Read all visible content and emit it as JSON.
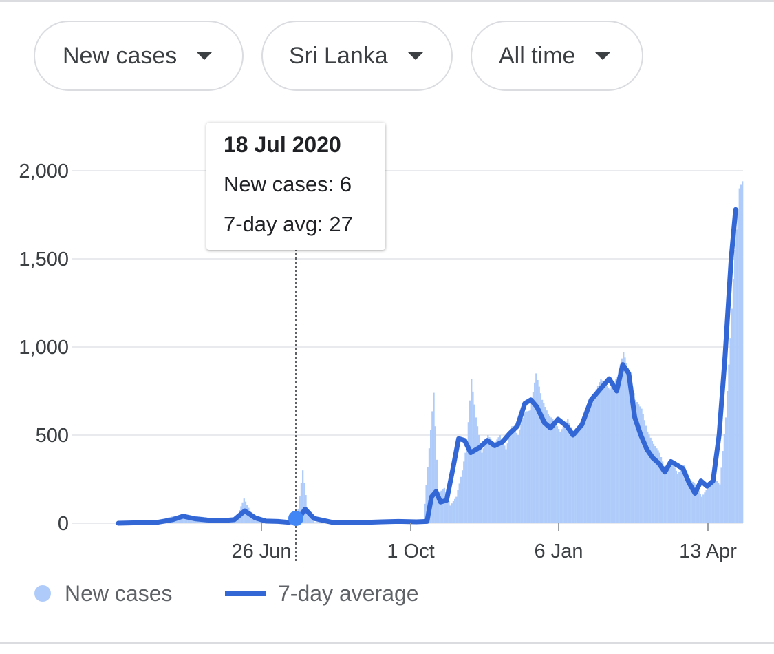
{
  "filters": {
    "metric": "New cases",
    "country": "Sri Lanka",
    "range": "All time"
  },
  "tooltip": {
    "date": "18 Jul 2020",
    "new_cases": "New cases: 6",
    "avg": "7-day avg: 27"
  },
  "legend": {
    "new_cases": "New cases",
    "avg": "7-day average"
  },
  "colors": {
    "bars": "#aecbfa",
    "line": "#3367d6",
    "grid": "#e8eaed",
    "marker": "#4285f4"
  },
  "chart_data": {
    "type": "bar",
    "x_ticks": [
      "26 Jun",
      "1 Oct",
      "6 Jan",
      "13 Apr"
    ],
    "y_ticks": [
      "0",
      "500",
      "1,000",
      "1,500",
      "2,000"
    ],
    "ylim": [
      0,
      2000
    ],
    "grid": true,
    "legend_position": "bottom-left",
    "series": [
      {
        "name": "New cases",
        "type": "bar",
        "points": [
          [
            "2020-03-10",
            0
          ],
          [
            "2020-03-25",
            10
          ],
          [
            "2020-04-05",
            15
          ],
          [
            "2020-04-15",
            40
          ],
          [
            "2020-04-25",
            45
          ],
          [
            "2020-05-05",
            35
          ],
          [
            "2020-05-15",
            20
          ],
          [
            "2020-05-22",
            20
          ],
          [
            "2020-05-27",
            30
          ],
          [
            "2020-06-01",
            140
          ],
          [
            "2020-06-05",
            70
          ],
          [
            "2020-06-10",
            30
          ],
          [
            "2020-06-15",
            20
          ],
          [
            "2020-06-22",
            15
          ],
          [
            "2020-06-30",
            10
          ],
          [
            "2020-07-06",
            10
          ],
          [
            "2020-07-10",
            300
          ],
          [
            "2020-07-13",
            90
          ],
          [
            "2020-07-18",
            6
          ],
          [
            "2020-07-25",
            10
          ],
          [
            "2020-08-05",
            5
          ],
          [
            "2020-08-20",
            5
          ],
          [
            "2020-09-01",
            5
          ],
          [
            "2020-09-15",
            5
          ],
          [
            "2020-09-28",
            5
          ],
          [
            "2020-10-05",
            740
          ],
          [
            "2020-10-08",
            170
          ],
          [
            "2020-10-12",
            200
          ],
          [
            "2020-10-16",
            100
          ],
          [
            "2020-10-20",
            150
          ],
          [
            "2020-10-24",
            300
          ],
          [
            "2020-10-27",
            450
          ],
          [
            "2020-10-30",
            820
          ],
          [
            "2020-11-02",
            600
          ],
          [
            "2020-11-06",
            400
          ],
          [
            "2020-11-10",
            500
          ],
          [
            "2020-11-14",
            450
          ],
          [
            "2020-11-18",
            500
          ],
          [
            "2020-11-22",
            420
          ],
          [
            "2020-11-26",
            550
          ],
          [
            "2020-11-30",
            500
          ],
          [
            "2020-12-04",
            630
          ],
          [
            "2020-12-08",
            640
          ],
          [
            "2020-12-12",
            850
          ],
          [
            "2020-12-16",
            700
          ],
          [
            "2020-12-20",
            620
          ],
          [
            "2020-12-24",
            580
          ],
          [
            "2020-12-28",
            520
          ],
          [
            "2021-01-02",
            590
          ],
          [
            "2021-01-06",
            500
          ],
          [
            "2021-01-12",
            560
          ],
          [
            "2021-01-18",
            700
          ],
          [
            "2021-01-24",
            820
          ],
          [
            "2021-01-30",
            760
          ],
          [
            "2021-02-04",
            830
          ],
          [
            "2021-02-08",
            970
          ],
          [
            "2021-02-12",
            850
          ],
          [
            "2021-02-16",
            700
          ],
          [
            "2021-02-20",
            650
          ],
          [
            "2021-02-24",
            520
          ],
          [
            "2021-02-28",
            450
          ],
          [
            "2021-03-04",
            400
          ],
          [
            "2021-03-08",
            300
          ],
          [
            "2021-03-12",
            350
          ],
          [
            "2021-03-16",
            280
          ],
          [
            "2021-03-20",
            330
          ],
          [
            "2021-03-24",
            250
          ],
          [
            "2021-03-28",
            220
          ],
          [
            "2021-04-01",
            150
          ],
          [
            "2021-04-05",
            200
          ],
          [
            "2021-04-09",
            260
          ],
          [
            "2021-04-13",
            220
          ],
          [
            "2021-04-17",
            600
          ],
          [
            "2021-04-20",
            1050
          ],
          [
            "2021-04-23",
            1550
          ],
          [
            "2021-04-26",
            1900
          ],
          [
            "2021-04-28",
            1940
          ]
        ]
      },
      {
        "name": "7-day average",
        "type": "line",
        "points": [
          [
            "2020-03-10",
            0
          ],
          [
            "2020-03-25",
            3
          ],
          [
            "2020-04-05",
            5
          ],
          [
            "2020-04-15",
            20
          ],
          [
            "2020-04-22",
            40
          ],
          [
            "2020-04-30",
            25
          ],
          [
            "2020-05-08",
            18
          ],
          [
            "2020-05-18",
            15
          ],
          [
            "2020-05-26",
            20
          ],
          [
            "2020-06-02",
            70
          ],
          [
            "2020-06-09",
            30
          ],
          [
            "2020-06-16",
            12
          ],
          [
            "2020-06-24",
            10
          ],
          [
            "2020-07-01",
            5
          ],
          [
            "2020-07-07",
            15
          ],
          [
            "2020-07-12",
            80
          ],
          [
            "2020-07-18",
            27
          ],
          [
            "2020-07-30",
            5
          ],
          [
            "2020-08-15",
            3
          ],
          [
            "2020-09-01",
            8
          ],
          [
            "2020-09-12",
            10
          ],
          [
            "2020-09-24",
            8
          ],
          [
            "2020-10-01",
            10
          ],
          [
            "2020-10-04",
            150
          ],
          [
            "2020-10-07",
            180
          ],
          [
            "2020-10-10",
            120
          ],
          [
            "2020-10-14",
            130
          ],
          [
            "2020-10-18",
            300
          ],
          [
            "2020-10-22",
            480
          ],
          [
            "2020-10-26",
            470
          ],
          [
            "2020-10-30",
            400
          ],
          [
            "2020-11-05",
            430
          ],
          [
            "2020-11-10",
            470
          ],
          [
            "2020-11-15",
            440
          ],
          [
            "2020-11-20",
            460
          ],
          [
            "2020-11-25",
            510
          ],
          [
            "2020-11-30",
            550
          ],
          [
            "2020-12-05",
            680
          ],
          [
            "2020-12-09",
            700
          ],
          [
            "2020-12-13",
            660
          ],
          [
            "2020-12-18",
            570
          ],
          [
            "2020-12-22",
            540
          ],
          [
            "2020-12-27",
            590
          ],
          [
            "2021-01-02",
            550
          ],
          [
            "2021-01-06",
            500
          ],
          [
            "2021-01-12",
            560
          ],
          [
            "2021-01-18",
            700
          ],
          [
            "2021-01-24",
            760
          ],
          [
            "2021-01-30",
            820
          ],
          [
            "2021-02-04",
            750
          ],
          [
            "2021-02-08",
            900
          ],
          [
            "2021-02-12",
            850
          ],
          [
            "2021-02-16",
            600
          ],
          [
            "2021-02-20",
            500
          ],
          [
            "2021-02-24",
            420
          ],
          [
            "2021-02-28",
            370
          ],
          [
            "2021-03-04",
            340
          ],
          [
            "2021-03-08",
            290
          ],
          [
            "2021-03-12",
            350
          ],
          [
            "2021-03-16",
            330
          ],
          [
            "2021-03-20",
            310
          ],
          [
            "2021-03-24",
            230
          ],
          [
            "2021-03-28",
            170
          ],
          [
            "2021-04-01",
            240
          ],
          [
            "2021-04-05",
            210
          ],
          [
            "2021-04-09",
            240
          ],
          [
            "2021-04-13",
            500
          ],
          [
            "2021-04-17",
            950
          ],
          [
            "2021-04-21",
            1500
          ],
          [
            "2021-04-24",
            1780
          ]
        ]
      }
    ]
  }
}
